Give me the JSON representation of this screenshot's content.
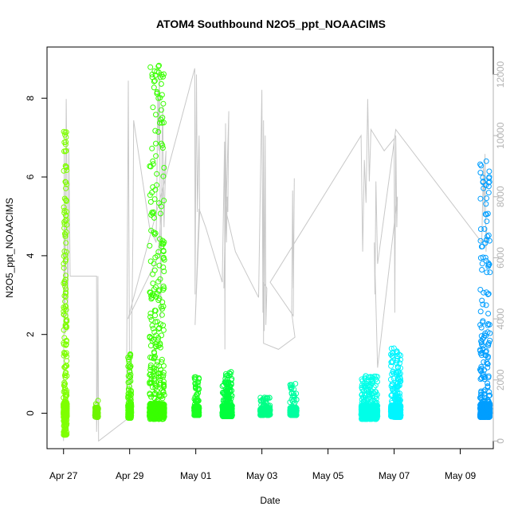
{
  "chart_data": {
    "type": "scatter",
    "title": "ATOM4 Southbound N2O5_ppt_NOAACIMS",
    "xlabel": "Date",
    "ylabel": "N2O5_ppt_NOAACIMS",
    "x_ticks": [
      "Apr 27",
      "Apr 29",
      "May 01",
      "May 03",
      "May 05",
      "May 07",
      "May 09"
    ],
    "x_tick_days": [
      0,
      2,
      4,
      6,
      8,
      10,
      12
    ],
    "xlim_days": [
      -0.5,
      13.0
    ],
    "y_ticks": [
      0,
      2,
      4,
      6,
      8
    ],
    "ylim": [
      -0.9,
      9.3
    ],
    "y2_ticks": [
      0,
      2000,
      4000,
      6000,
      8000,
      10000,
      12000
    ],
    "y2lim": [
      -250,
      12900
    ],
    "secondary_series": {
      "name": "",
      "color": "#c8c8c8",
      "x_days": [
        0.0,
        0.02,
        0.04,
        0.08,
        0.1,
        0.12,
        0.14,
        0.16,
        0.2,
        1.0,
        1.0,
        1.02,
        1.04,
        1.06,
        1.9,
        1.96,
        2.0,
        2.04,
        2.1,
        2.12,
        2.6,
        2.8,
        2.82,
        2.85,
        2.88,
        2.9,
        2.94,
        2.98,
        3.0,
        3.02,
        3.04,
        3.1,
        2.85,
        1.95,
        3.97,
        3.98,
        4.0,
        4.02,
        4.05,
        4.1,
        4.12,
        3.98,
        4.1,
        4.3,
        4.8,
        4.87,
        4.88,
        4.9,
        4.93,
        4.95,
        4.97,
        5.0,
        4.85,
        4.9,
        5.2,
        5.9,
        6.0,
        6.03,
        6.05,
        6.07,
        6.1,
        6.12,
        6.15,
        6.05,
        6.05,
        6.5,
        7.0,
        6.9,
        6.93,
        6.95,
        6.98,
        6.95,
        6.25,
        9.0,
        9.05,
        9.1,
        9.15,
        9.2,
        9.25,
        9.3,
        9.7,
        10.0,
        10.0,
        10.02,
        10.05,
        10.08,
        10.1,
        9.5,
        9.4,
        9.42,
        9.45,
        9.5,
        10.0,
        10.05,
        12.65,
        12.7,
        12.72,
        12.75,
        12.78,
        12.8
      ],
      "y_values": [
        0,
        9500,
        3500,
        11200,
        9000,
        3600,
        5400,
        9600,
        5400,
        5400,
        300,
        1200,
        5400,
        0,
        700,
        11800,
        900,
        1500,
        7000,
        10500,
        7000,
        6500,
        8000,
        11500,
        9500,
        12200,
        4000,
        9800,
        11000,
        8500,
        7000,
        9500,
        6000,
        4000,
        12200,
        4800,
        9000,
        12000,
        7500,
        10000,
        7500,
        3800,
        7600,
        7000,
        5200,
        9800,
        3000,
        10400,
        6500,
        8000,
        7500,
        10800,
        5000,
        7600,
        6200,
        4700,
        11500,
        4200,
        10500,
        3600,
        10000,
        3800,
        5000,
        5200,
        3200,
        3000,
        3400,
        4200,
        8200,
        5000,
        8600,
        4100,
        5200,
        10000,
        6200,
        9200,
        7800,
        11200,
        8500,
        10200,
        9500,
        9900,
        9800,
        4200,
        10000,
        7000,
        8000,
        2400,
        6500,
        4800,
        8500,
        5800,
        9800,
        10200,
        6500,
        9000,
        7500,
        9400,
        6200,
        7000
      ]
    },
    "series": [
      {
        "name": "",
        "color": "#7fff00",
        "x_range_days": [
          0.0,
          0.1
        ],
        "cluster": "n",
        "n": 800,
        "max": 7.15,
        "min": -0.55,
        "jitter": 0.06,
        "lo_scale": 1.0
      },
      {
        "name": "",
        "color": "#6ef500",
        "x_range_days": [
          0.95,
          1.05
        ],
        "cluster": "n",
        "n": 90,
        "max": 0.32,
        "min": -0.1,
        "jitter": 0.04,
        "lo_scale": 0.6
      },
      {
        "name": "",
        "color": "#4fff00",
        "x_range_days": [
          1.95,
          2.05
        ],
        "cluster": "n",
        "n": 300,
        "max": 1.5,
        "min": -0.12,
        "jitter": 0.05,
        "lo_scale": 0.9
      },
      {
        "name": "",
        "color": "#38ff00",
        "x_range_days": [
          2.6,
          3.05
        ],
        "cluster": "n",
        "n": 1100,
        "max": 8.83,
        "min": -0.15,
        "jitter": 0.05,
        "lo_scale": 1.0
      },
      {
        "name": "",
        "color": "#1aff20",
        "x_range_days": [
          3.95,
          4.1
        ],
        "cluster": "n",
        "n": 250,
        "max": 0.92,
        "min": -0.05,
        "jitter": 0.05,
        "lo_scale": 0.7
      },
      {
        "name": "",
        "color": "#00ff3e",
        "x_range_days": [
          4.8,
          5.1
        ],
        "cluster": "n",
        "n": 600,
        "max": 1.05,
        "min": -0.08,
        "jitter": 0.04,
        "lo_scale": 0.8
      },
      {
        "name": "",
        "color": "#00ff87",
        "x_range_days": [
          5.95,
          6.25
        ],
        "cluster": "n",
        "n": 300,
        "max": 0.4,
        "min": -0.05,
        "jitter": 0.04,
        "lo_scale": 0.5
      },
      {
        "name": "",
        "color": "#00ffa0",
        "x_range_days": [
          6.85,
          7.05
        ],
        "cluster": "n",
        "n": 250,
        "max": 0.75,
        "min": -0.05,
        "jitter": 0.04,
        "lo_scale": 0.6
      },
      {
        "name": "",
        "color": "#00ffe8",
        "x_range_days": [
          9.0,
          9.5
        ],
        "cluster": "n",
        "n": 800,
        "max": 0.95,
        "min": -0.15,
        "jitter": 0.05,
        "lo_scale": 0.8
      },
      {
        "name": "",
        "color": "#00f5ff",
        "x_range_days": [
          9.9,
          10.2
        ],
        "cluster": "n",
        "n": 700,
        "max": 1.65,
        "min": -0.1,
        "jitter": 0.05,
        "lo_scale": 0.8
      },
      {
        "name": "",
        "color": "#009eff",
        "x_range_days": [
          12.6,
          12.9
        ],
        "cluster": "n",
        "n": 700,
        "max": 6.4,
        "min": -0.1,
        "jitter": 0.05,
        "lo_scale": 1.0
      }
    ],
    "grid": false,
    "legend": "none"
  }
}
